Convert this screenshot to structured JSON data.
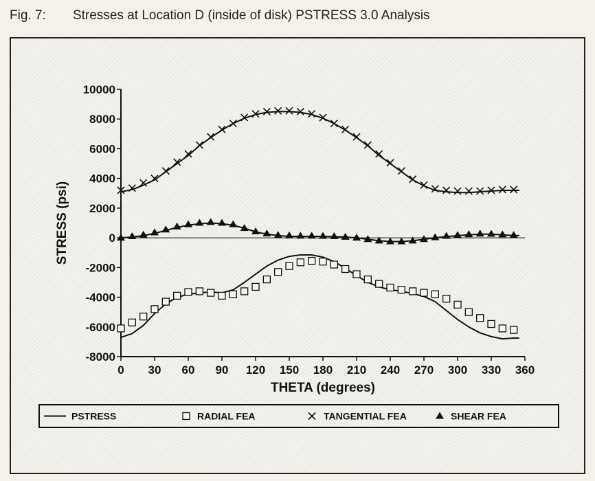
{
  "caption": {
    "number": "Fig. 7:",
    "text": "Stresses at Location D (inside of disk) PSTRESS 3.0 Analysis"
  },
  "chart_data": {
    "type": "scatter",
    "xlabel": "THETA (degrees)",
    "ylabel": "STRESS (psi)",
    "xlim": [
      0,
      360
    ],
    "ylim": [
      -8000,
      10000
    ],
    "x_ticks": [
      0,
      30,
      60,
      90,
      120,
      150,
      180,
      210,
      240,
      270,
      300,
      330,
      360
    ],
    "y_ticks": [
      10000,
      8000,
      6000,
      4000,
      2000,
      0,
      -2000,
      -4000,
      -6000,
      -8000
    ],
    "y_tick_labels": [
      "10000",
      "8000",
      "6000",
      "4000",
      "2000",
      "0",
      "-2000",
      "-4000",
      "-6000",
      "-8000"
    ],
    "grid": false,
    "zero_line": true,
    "legend_placement": "bottom",
    "legend": [
      {
        "marker": "line",
        "label": "PSTRESS"
      },
      {
        "marker": "square",
        "label": "RADIAL FEA"
      },
      {
        "marker": "cross",
        "label": "TANGENTIAL FEA"
      },
      {
        "marker": "triangle",
        "label": "SHEAR FEA"
      }
    ],
    "lines": [
      {
        "legend": "PSTRESS",
        "x": [
          0,
          10,
          20,
          30,
          40,
          50,
          60,
          70,
          80,
          90,
          100,
          110,
          120,
          130,
          140,
          150,
          160,
          170,
          180,
          190,
          200,
          210,
          220,
          230,
          240,
          250,
          260,
          270,
          280,
          290,
          300,
          310,
          320,
          330,
          340,
          350,
          355
        ],
        "y": [
          3100,
          3250,
          3550,
          3900,
          4450,
          5000,
          5550,
          6200,
          6750,
          7250,
          7700,
          8050,
          8300,
          8450,
          8500,
          8500,
          8450,
          8300,
          8050,
          7700,
          7250,
          6750,
          6200,
          5550,
          5000,
          4450,
          3900,
          3500,
          3200,
          3100,
          3050,
          3050,
          3100,
          3150,
          3200,
          3200,
          3200
        ]
      },
      {
        "legend": "PSTRESS",
        "x": [
          0,
          10,
          20,
          30,
          40,
          50,
          60,
          70,
          80,
          90,
          100,
          110,
          120,
          130,
          140,
          150,
          160,
          170,
          180,
          190,
          200,
          210,
          220,
          230,
          240,
          250,
          260,
          270,
          280,
          290,
          300,
          310,
          320,
          330,
          340,
          350,
          355
        ],
        "y": [
          0,
          50,
          150,
          300,
          500,
          700,
          850,
          950,
          1000,
          950,
          850,
          650,
          400,
          250,
          150,
          100,
          100,
          100,
          100,
          80,
          50,
          0,
          -100,
          -200,
          -250,
          -250,
          -200,
          -100,
          0,
          80,
          150,
          200,
          250,
          250,
          200,
          150,
          150
        ]
      },
      {
        "legend": "PSTRESS",
        "x": [
          0,
          10,
          20,
          30,
          40,
          50,
          60,
          70,
          80,
          90,
          100,
          110,
          120,
          130,
          140,
          150,
          160,
          170,
          180,
          190,
          200,
          210,
          220,
          230,
          240,
          250,
          260,
          270,
          280,
          290,
          300,
          310,
          320,
          330,
          340,
          350,
          355
        ],
        "y": [
          -6700,
          -6450,
          -5900,
          -5100,
          -4450,
          -4000,
          -3800,
          -3700,
          -3650,
          -3700,
          -3500,
          -3000,
          -2450,
          -1900,
          -1500,
          -1250,
          -1150,
          -1150,
          -1300,
          -1600,
          -2050,
          -2550,
          -3000,
          -3300,
          -3500,
          -3600,
          -3750,
          -3950,
          -4300,
          -4900,
          -5500,
          -6000,
          -6400,
          -6650,
          -6800,
          -6750,
          -6750
        ]
      }
    ],
    "series": [
      {
        "legend": "RADIAL FEA",
        "x": [
          0,
          10,
          20,
          30,
          40,
          50,
          60,
          70,
          80,
          90,
          100,
          110,
          120,
          130,
          140,
          150,
          160,
          170,
          180,
          190,
          200,
          210,
          220,
          230,
          240,
          250,
          260,
          270,
          280,
          290,
          300,
          310,
          320,
          330,
          340,
          350
        ],
        "y": [
          -6100,
          -5700,
          -5300,
          -4800,
          -4300,
          -3900,
          -3650,
          -3600,
          -3700,
          -3900,
          -3800,
          -3600,
          -3300,
          -2800,
          -2300,
          -1900,
          -1650,
          -1550,
          -1600,
          -1800,
          -2100,
          -2450,
          -2800,
          -3100,
          -3350,
          -3500,
          -3600,
          -3700,
          -3800,
          -4100,
          -4500,
          -5000,
          -5400,
          -5800,
          -6100,
          -6200
        ]
      },
      {
        "legend": "TANGENTIAL FEA",
        "x": [
          0,
          10,
          20,
          30,
          40,
          50,
          60,
          70,
          80,
          90,
          100,
          110,
          120,
          130,
          140,
          150,
          160,
          170,
          180,
          190,
          200,
          210,
          220,
          230,
          240,
          250,
          260,
          270,
          280,
          290,
          300,
          310,
          320,
          330,
          340,
          350
        ],
        "y": [
          3200,
          3350,
          3700,
          4000,
          4500,
          5100,
          5650,
          6250,
          6800,
          7300,
          7700,
          8100,
          8350,
          8500,
          8550,
          8550,
          8500,
          8350,
          8100,
          7700,
          7300,
          6800,
          6250,
          5650,
          5050,
          4500,
          3950,
          3550,
          3300,
          3200,
          3150,
          3150,
          3150,
          3200,
          3250,
          3250
        ]
      },
      {
        "legend": "SHEAR FEA",
        "x": [
          0,
          10,
          20,
          30,
          40,
          50,
          60,
          70,
          80,
          90,
          100,
          110,
          120,
          130,
          140,
          150,
          160,
          170,
          180,
          190,
          200,
          210,
          220,
          230,
          240,
          250,
          260,
          270,
          280,
          290,
          300,
          310,
          320,
          330,
          340,
          350
        ],
        "y": [
          0,
          100,
          200,
          350,
          550,
          750,
          900,
          1000,
          1050,
          1000,
          900,
          650,
          420,
          280,
          180,
          150,
          130,
          130,
          120,
          100,
          60,
          0,
          -100,
          -200,
          -250,
          -250,
          -200,
          -100,
          30,
          120,
          180,
          230,
          270,
          260,
          220,
          180
        ]
      }
    ]
  }
}
